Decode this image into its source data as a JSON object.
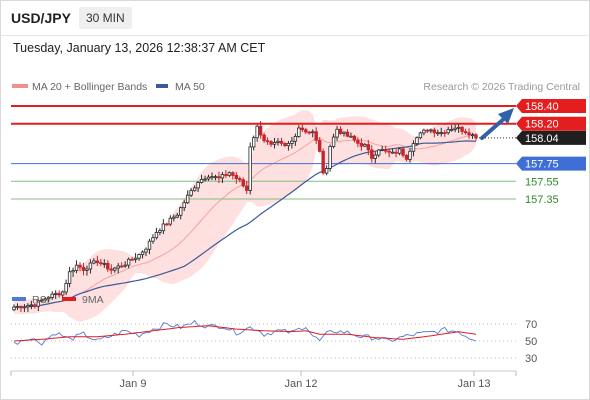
{
  "header": {
    "symbol": "USD/JPY",
    "timeframe": "30 MIN",
    "timestamp": "Tuesday, January 13, 2026 12:38:37 AM CET"
  },
  "colors": {
    "candle_up": "#2b2b2b",
    "candle_down": "#c8242b",
    "resistance": "#e41e1e",
    "support_main": "#3f6fd6",
    "support_minor": "#7fbf7f",
    "support_label": "#2e8b2e",
    "ma50": "#3b5a9a",
    "bollinger_fill": "#fde0df",
    "ma20": "#f4a3a3",
    "rsi": "#4f7ad8",
    "rsi_ma": "#e21d1d",
    "arrow": "#2f62a8"
  },
  "chart_data": [
    {
      "type": "candlestick",
      "legend": [
        {
          "label": "MA 20 + Bollinger Bands",
          "color": "#f28f8f"
        },
        {
          "label": "MA 50",
          "color": "#3b5a9a"
        }
      ],
      "credit": "Research © 2026 Trading Central",
      "x_ticks": [
        "Jan 9",
        "Jan 12",
        "Jan 13"
      ],
      "y_range": [
        156.0,
        158.5
      ],
      "last_price": {
        "value": 158.04,
        "label": "158.04"
      },
      "levels": [
        {
          "label": "158.40",
          "value": 158.4,
          "kind": "resistance"
        },
        {
          "label": "158.20",
          "value": 158.2,
          "kind": "resistance"
        },
        {
          "label": "157.75",
          "value": 157.75,
          "kind": "support_main"
        },
        {
          "label": "157.55",
          "value": 157.55,
          "kind": "support_minor"
        },
        {
          "label": "157.35",
          "value": 157.35,
          "kind": "support_minor"
        }
      ],
      "price_anchors": [
        [
          0,
          156.13
        ],
        [
          6,
          156.16
        ],
        [
          10,
          156.25
        ],
        [
          14,
          156.3
        ],
        [
          16,
          156.52
        ],
        [
          18,
          156.6
        ],
        [
          20,
          156.56
        ],
        [
          24,
          156.65
        ],
        [
          28,
          156.55
        ],
        [
          32,
          156.62
        ],
        [
          36,
          156.72
        ],
        [
          38,
          156.8
        ],
        [
          41,
          156.98
        ],
        [
          44,
          157.08
        ],
        [
          47,
          157.18
        ],
        [
          50,
          157.38
        ],
        [
          53,
          157.55
        ],
        [
          56,
          157.62
        ],
        [
          59,
          157.58
        ],
        [
          62,
          157.65
        ],
        [
          65,
          157.55
        ],
        [
          67,
          157.45
        ],
        [
          68,
          157.95
        ],
        [
          70,
          158.16
        ],
        [
          72,
          158.02
        ],
        [
          74,
          157.95
        ],
        [
          76,
          157.98
        ],
        [
          78,
          157.94
        ],
        [
          80,
          158.0
        ],
        [
          82,
          158.16
        ],
        [
          84,
          158.12
        ],
        [
          86,
          158.1
        ],
        [
          88,
          157.9
        ],
        [
          89,
          157.62
        ],
        [
          90,
          157.72
        ],
        [
          91,
          157.95
        ],
        [
          93,
          158.14
        ],
        [
          95,
          158.08
        ],
        [
          97,
          158.04
        ],
        [
          99,
          157.98
        ],
        [
          101,
          157.95
        ],
        [
          103,
          157.82
        ],
        [
          105,
          157.92
        ],
        [
          107,
          157.88
        ],
        [
          109,
          157.86
        ],
        [
          111,
          157.9
        ],
        [
          113,
          157.82
        ],
        [
          115,
          158.0
        ],
        [
          117,
          158.08
        ],
        [
          119,
          158.14
        ],
        [
          121,
          158.12
        ],
        [
          123,
          158.1
        ],
        [
          125,
          158.14
        ],
        [
          127,
          158.16
        ],
        [
          129,
          158.13
        ],
        [
          131,
          158.1
        ],
        [
          133,
          158.04
        ]
      ]
    },
    {
      "type": "line",
      "legend": [
        {
          "label": "RSI",
          "color": "#4f7ad8"
        },
        {
          "label": "9MA",
          "color": "#e21d1d"
        }
      ],
      "y_ticks": [
        70,
        50,
        30
      ],
      "y_range": [
        20,
        80
      ],
      "rsi_anchors": [
        [
          0,
          47
        ],
        [
          4,
          54
        ],
        [
          8,
          48
        ],
        [
          12,
          60
        ],
        [
          16,
          52
        ],
        [
          20,
          58
        ],
        [
          24,
          50
        ],
        [
          28,
          56
        ],
        [
          32,
          62
        ],
        [
          36,
          57
        ],
        [
          40,
          64
        ],
        [
          44,
          70
        ],
        [
          48,
          66
        ],
        [
          52,
          72
        ],
        [
          56,
          67
        ],
        [
          60,
          68
        ],
        [
          64,
          60
        ],
        [
          68,
          66
        ],
        [
          70,
          64
        ],
        [
          72,
          58
        ],
        [
          76,
          62
        ],
        [
          80,
          60
        ],
        [
          84,
          68
        ],
        [
          86,
          56
        ],
        [
          88,
          50
        ],
        [
          90,
          58
        ],
        [
          92,
          62
        ],
        [
          96,
          60
        ],
        [
          100,
          55
        ],
        [
          104,
          54
        ],
        [
          108,
          50
        ],
        [
          112,
          55
        ],
        [
          116,
          58
        ],
        [
          120,
          60
        ],
        [
          124,
          63
        ],
        [
          128,
          61
        ],
        [
          131,
          54
        ],
        [
          133,
          52
        ]
      ],
      "rsi_ma_anchors": [
        [
          0,
          50
        ],
        [
          8,
          52
        ],
        [
          16,
          55
        ],
        [
          24,
          55
        ],
        [
          32,
          58
        ],
        [
          40,
          62
        ],
        [
          48,
          66
        ],
        [
          56,
          68
        ],
        [
          64,
          64
        ],
        [
          72,
          62
        ],
        [
          80,
          61
        ],
        [
          84,
          62
        ],
        [
          88,
          58
        ],
        [
          96,
          58
        ],
        [
          104,
          54
        ],
        [
          112,
          52
        ],
        [
          120,
          56
        ],
        [
          128,
          61
        ],
        [
          133,
          58
        ]
      ]
    }
  ]
}
